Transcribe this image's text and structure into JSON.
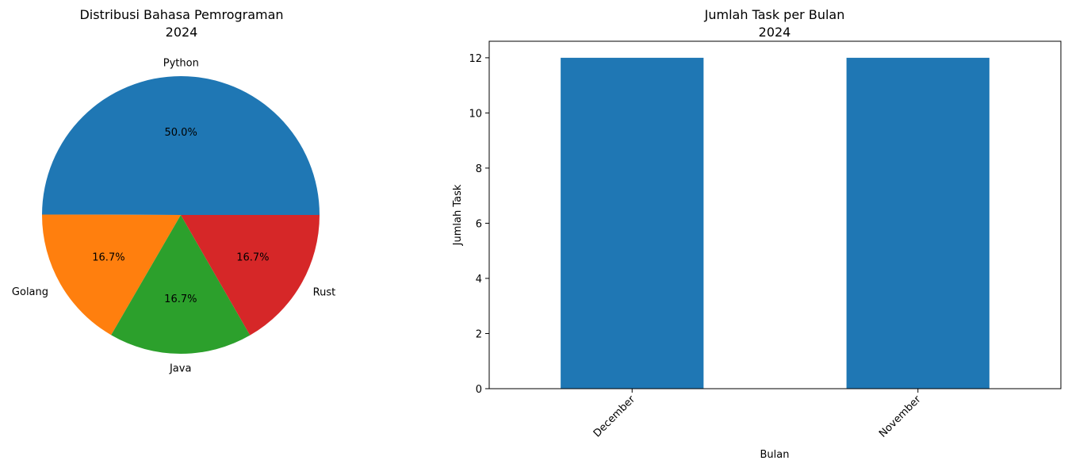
{
  "chart_data": [
    {
      "type": "pie",
      "title_line1": "Distribusi Bahasa Pemrograman",
      "title_line2": "2024",
      "slices": [
        {
          "label": "Python",
          "value": 50.0,
          "pct_label": "50.0%",
          "color": "#1f77b4"
        },
        {
          "label": "Golang",
          "value": 16.7,
          "pct_label": "16.7%",
          "color": "#ff7f0e"
        },
        {
          "label": "Java",
          "value": 16.7,
          "pct_label": "16.7%",
          "color": "#2ca02c"
        },
        {
          "label": "Rust",
          "value": 16.7,
          "pct_label": "16.7%",
          "color": "#d62728"
        }
      ]
    },
    {
      "type": "bar",
      "title_line1": "Jumlah Task per Bulan",
      "title_line2": "2024",
      "categories": [
        "December",
        "November"
      ],
      "values": [
        12,
        12
      ],
      "color": "#1f77b4",
      "xlabel": "Bulan",
      "ylabel": "Jumlah Task",
      "ylim": [
        0,
        12.6
      ],
      "yticks": [
        0,
        2,
        4,
        6,
        8,
        10,
        12
      ]
    }
  ]
}
